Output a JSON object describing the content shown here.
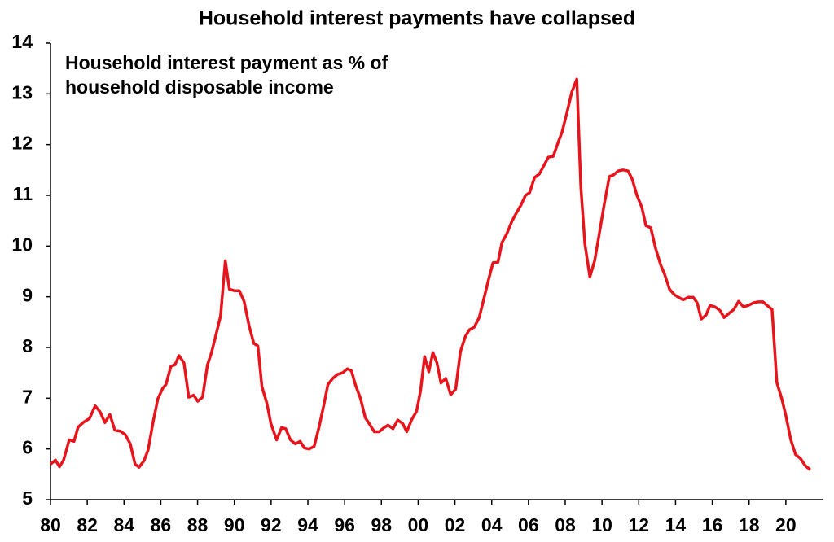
{
  "chart_data": {
    "type": "line",
    "title": "Household interest payments have collapsed",
    "annotation": [
      "Household interest payment as % of",
      "household disposable income"
    ],
    "series": [
      {
        "name": "Household interest payment as % of household disposable income",
        "color": "#e8141c",
        "x": [
          1980.0,
          1980.27,
          1980.49,
          1980.71,
          1981.02,
          1981.28,
          1981.5,
          1981.81,
          1982.12,
          1982.43,
          1982.7,
          1982.96,
          1983.23,
          1983.5,
          1983.81,
          1984.07,
          1984.34,
          1984.6,
          1984.82,
          1985.09,
          1985.31,
          1985.58,
          1985.84,
          1986.11,
          1986.28,
          1986.55,
          1986.77,
          1986.99,
          1987.26,
          1987.52,
          1987.79,
          1988.01,
          1988.27,
          1988.54,
          1988.76,
          1988.98,
          1989.25,
          1989.51,
          1989.73,
          1990.0,
          1990.27,
          1990.53,
          1990.8,
          1991.06,
          1991.28,
          1991.5,
          1991.77,
          1991.99,
          1992.3,
          1992.57,
          1992.79,
          1993.05,
          1993.32,
          1993.58,
          1993.81,
          1994.07,
          1994.34,
          1994.6,
          1994.87,
          1995.09,
          1995.35,
          1995.62,
          1995.88,
          1996.15,
          1996.37,
          1996.59,
          1996.86,
          1997.12,
          1997.39,
          1997.61,
          1997.88,
          1998.14,
          1998.36,
          1998.63,
          1998.89,
          1999.16,
          1999.38,
          1999.65,
          1999.91,
          2000.13,
          2000.35,
          2000.58,
          2000.8,
          2001.02,
          2001.24,
          2001.5,
          2001.77,
          2002.04,
          2002.3,
          2002.57,
          2002.79,
          2003.05,
          2003.32,
          2003.54,
          2003.81,
          2004.07,
          2004.34,
          2004.56,
          2004.82,
          2005.09,
          2005.31,
          2005.58,
          2005.84,
          2006.06,
          2006.33,
          2006.59,
          2006.86,
          2007.08,
          2007.35,
          2007.61,
          2007.83,
          2008.1,
          2008.36,
          2008.63,
          2008.85,
          2009.07,
          2009.34,
          2009.6,
          2009.87,
          2010.13,
          2010.4,
          2010.62,
          2010.88,
          2011.15,
          2011.42,
          2011.64,
          2011.9,
          2012.17,
          2012.39,
          2012.65,
          2012.92,
          2013.19,
          2013.41,
          2013.67,
          2013.94,
          2014.16,
          2014.42,
          2014.69,
          2014.96,
          2015.18,
          2015.4,
          2015.66,
          2015.88,
          2016.15,
          2016.42,
          2016.64,
          2016.9,
          2017.17,
          2017.43,
          2017.7,
          2017.96,
          2018.23,
          2018.5,
          2018.76,
          2018.98,
          2019.25,
          2019.51,
          2019.78,
          2020.0,
          2020.27,
          2020.53,
          2020.8,
          2021.06,
          2021.33
        ],
        "values": [
          5.7,
          5.78,
          5.65,
          5.78,
          6.18,
          6.15,
          6.43,
          6.53,
          6.6,
          6.85,
          6.73,
          6.52,
          6.68,
          6.37,
          6.35,
          6.28,
          6.1,
          5.7,
          5.64,
          5.77,
          5.98,
          6.53,
          6.99,
          7.2,
          7.27,
          7.63,
          7.66,
          7.84,
          7.7,
          7.02,
          7.06,
          6.94,
          7.02,
          7.66,
          7.9,
          8.22,
          8.62,
          9.71,
          9.15,
          9.12,
          9.12,
          8.91,
          8.43,
          8.08,
          8.03,
          7.23,
          6.9,
          6.5,
          6.18,
          6.42,
          6.4,
          6.18,
          6.1,
          6.15,
          6.02,
          6.0,
          6.05,
          6.42,
          6.87,
          7.27,
          7.39,
          7.47,
          7.5,
          7.58,
          7.54,
          7.26,
          7.0,
          6.62,
          6.47,
          6.34,
          6.34,
          6.42,
          6.47,
          6.4,
          6.57,
          6.5,
          6.34,
          6.58,
          6.74,
          7.15,
          7.82,
          7.52,
          7.9,
          7.7,
          7.3,
          7.39,
          7.07,
          7.18,
          7.92,
          8.22,
          8.35,
          8.4,
          8.59,
          8.91,
          9.31,
          9.67,
          9.68,
          10.07,
          10.24,
          10.48,
          10.63,
          10.8,
          11.0,
          11.05,
          11.35,
          11.42,
          11.6,
          11.75,
          11.77,
          12.04,
          12.25,
          12.64,
          13.04,
          13.29,
          11.16,
          10.04,
          9.39,
          9.71,
          10.28,
          10.84,
          11.37,
          11.4,
          11.48,
          11.5,
          11.48,
          11.32,
          11.0,
          10.76,
          10.4,
          10.36,
          9.95,
          9.63,
          9.44,
          9.15,
          9.04,
          8.99,
          8.94,
          8.99,
          8.99,
          8.88,
          8.56,
          8.64,
          8.83,
          8.8,
          8.73,
          8.59,
          8.67,
          8.75,
          8.91,
          8.8,
          8.83,
          8.88,
          8.9,
          8.9,
          8.83,
          8.75,
          7.31,
          6.99,
          6.66,
          6.18,
          5.89,
          5.81,
          5.67,
          5.59
        ]
      }
    ],
    "xlim": [
      1980,
      2022
    ],
    "xticks": [
      {
        "value": 1980,
        "label": "80"
      },
      {
        "value": 1982,
        "label": "82"
      },
      {
        "value": 1984,
        "label": "84"
      },
      {
        "value": 1986,
        "label": "86"
      },
      {
        "value": 1988,
        "label": "88"
      },
      {
        "value": 1990,
        "label": "90"
      },
      {
        "value": 1992,
        "label": "92"
      },
      {
        "value": 1994,
        "label": "94"
      },
      {
        "value": 1996,
        "label": "96"
      },
      {
        "value": 1998,
        "label": "98"
      },
      {
        "value": 2000,
        "label": "00"
      },
      {
        "value": 2002,
        "label": "02"
      },
      {
        "value": 2004,
        "label": "04"
      },
      {
        "value": 2006,
        "label": "06"
      },
      {
        "value": 2008,
        "label": "08"
      },
      {
        "value": 2010,
        "label": "10"
      },
      {
        "value": 2012,
        "label": "12"
      },
      {
        "value": 2014,
        "label": "14"
      },
      {
        "value": 2016,
        "label": "16"
      },
      {
        "value": 2018,
        "label": "18"
      },
      {
        "value": 2020,
        "label": "20"
      }
    ],
    "ylim": [
      5,
      14
    ],
    "yticks": [
      5,
      6,
      7,
      8,
      9,
      10,
      11,
      12,
      13,
      14
    ],
    "grid": false
  }
}
